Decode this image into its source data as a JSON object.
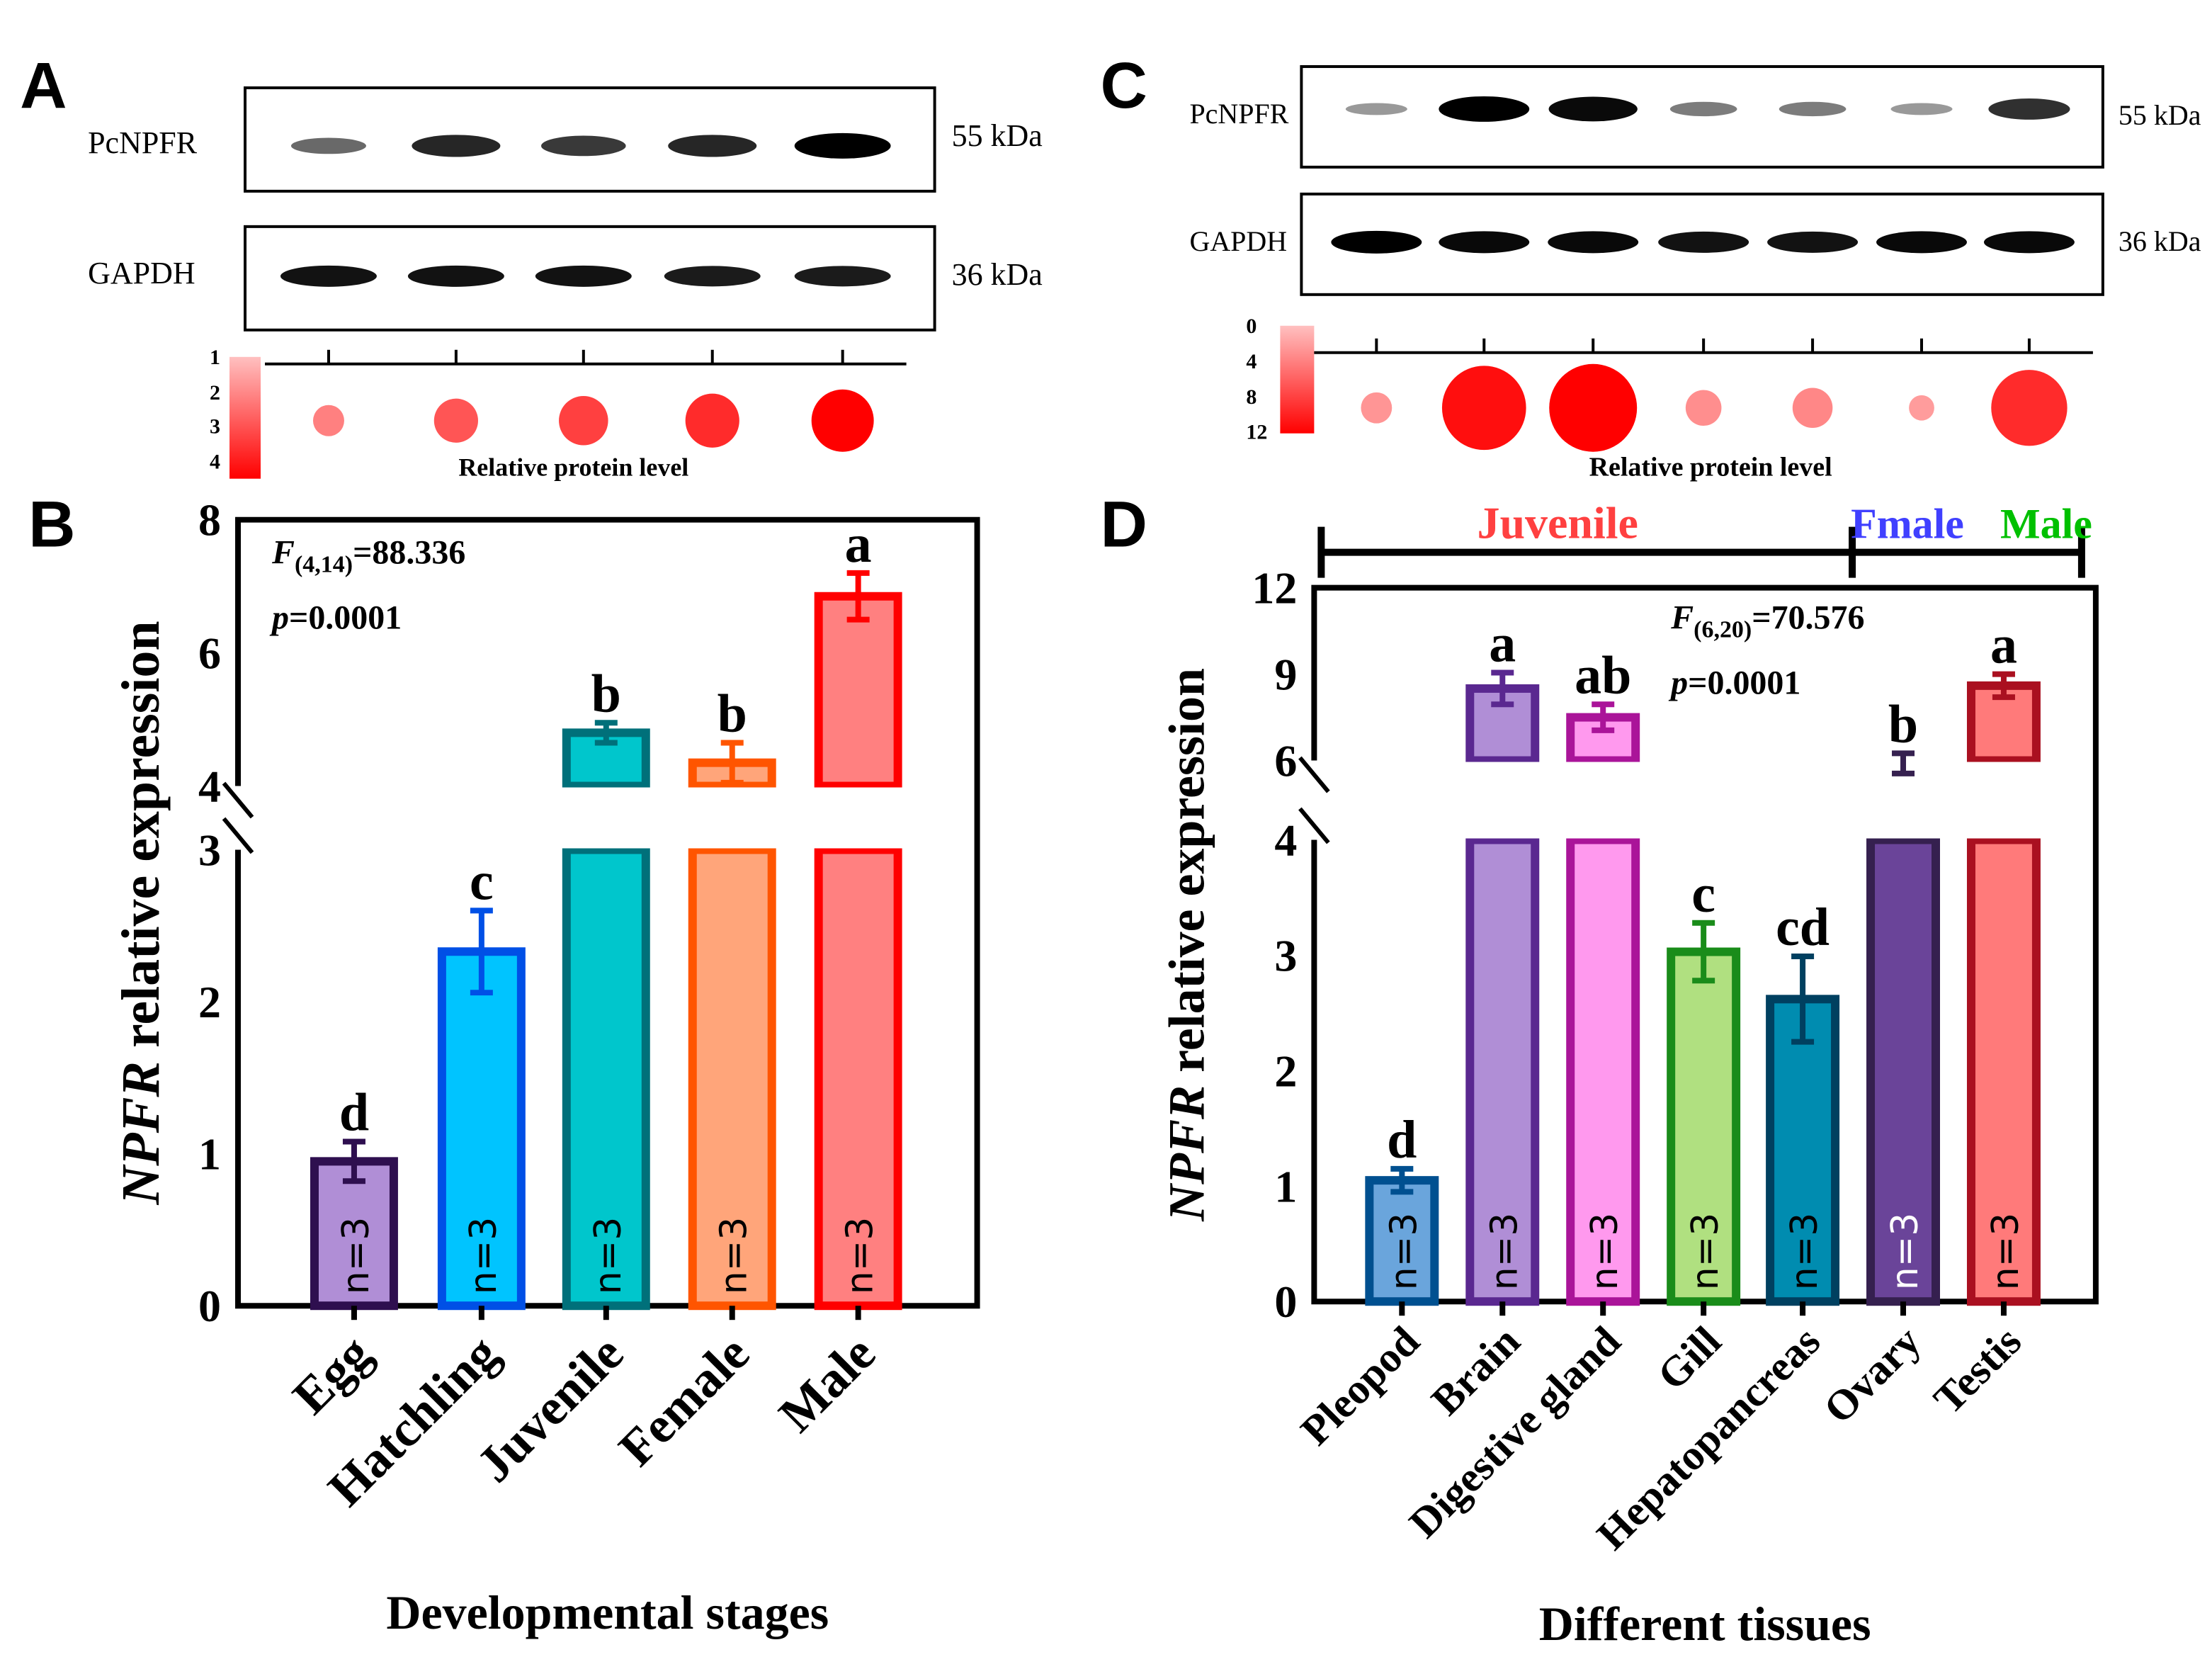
{
  "panels": {
    "a": "A",
    "b": "B",
    "c": "C",
    "d": "D"
  },
  "blot_a": {
    "target": "PcNPFR",
    "control": "GAPDH",
    "target_kda": "55 kDa",
    "control_kda": "36 kDa",
    "scale_ticks": [
      "1",
      "2",
      "3",
      "4"
    ],
    "scale_label": "Relative protein level",
    "target_intensity": [
      0.45,
      0.8,
      0.7,
      0.8,
      1.0
    ],
    "control_intensity": [
      0.9,
      0.9,
      0.9,
      0.85,
      0.85
    ],
    "relative_levels": [
      1,
      2,
      2.5,
      3,
      4
    ]
  },
  "blot_c": {
    "target": "PcNPFR",
    "control": "GAPDH",
    "target_kda": "55 kDa",
    "control_kda": "36 kDa",
    "scale_ticks": [
      "0",
      "4",
      "8",
      "12"
    ],
    "scale_label": "Relative protein level",
    "target_intensity": [
      0.2,
      1.0,
      0.95,
      0.35,
      0.35,
      0.2,
      0.75
    ],
    "control_intensity": [
      1,
      0.95,
      0.95,
      0.9,
      0.9,
      0.95,
      0.95
    ],
    "relative_levels": [
      1.5,
      11,
      12,
      2,
      2.5,
      1,
      9
    ]
  },
  "chart_data": [
    {
      "type": "bar",
      "id": "B",
      "categories": [
        "Egg",
        "Hatchling",
        "Juvenile",
        "Female",
        "Male"
      ],
      "values": [
        0.95,
        2.33,
        4.8,
        4.35,
        6.85
      ],
      "errors": [
        0.13,
        0.27,
        0.15,
        0.3,
        0.35
      ],
      "letters": [
        "d",
        "c",
        "b",
        "b",
        "a"
      ],
      "n_labels": [
        "n=3",
        "n=3",
        "n=3",
        "n=3",
        "n=3"
      ],
      "fill": [
        "#b08ed6",
        "#00c4ff",
        "#00c6cc",
        "#ffa57a",
        "#ff8080"
      ],
      "stroke": [
        "#2e0f4f",
        "#0050e6",
        "#00707a",
        "#ff5500",
        "#ff0000"
      ],
      "ylabel_italic": "NPFR",
      "ylabel_rest": " relative expression",
      "xlabel": "Developmental stages",
      "ylim": [
        0,
        8
      ],
      "axis_break": [
        3,
        4
      ],
      "yticks_lower": [
        "0",
        "1",
        "2",
        "3"
      ],
      "yticks_upper": [
        "4",
        "6",
        "8"
      ],
      "stat_f": "F",
      "stat_f_sub": "(4,14)",
      "stat_f_val": "=88.336",
      "stat_p": "p",
      "stat_p_val": "=0.0001"
    },
    {
      "type": "bar",
      "id": "D",
      "categories": [
        "Pleopod",
        "Brain",
        "Digestive gland",
        "Gill",
        "Hepatopancreas",
        "Ovary",
        "Testis"
      ],
      "values": [
        1.05,
        8.5,
        7.5,
        3.03,
        2.62,
        5.9,
        8.6
      ],
      "errors": [
        0.1,
        0.55,
        0.45,
        0.25,
        0.37,
        0.35,
        0.4
      ],
      "letters": [
        "d",
        "a",
        "ab",
        "c",
        "cd",
        "b",
        "a"
      ],
      "n_labels": [
        "n=3",
        "n=3",
        "n=3",
        "n=3",
        "n=3",
        "n=3",
        "n=3"
      ],
      "fill": [
        "#6aa5dc",
        "#b08ed6",
        "#ff99ee",
        "#b0e080",
        "#008cb0",
        "#6a4499",
        "#ff7a7a"
      ],
      "stroke": [
        "#005090",
        "#5a2890",
        "#aa1499",
        "#1a8c1a",
        "#004060",
        "#35204f",
        "#aa1020"
      ],
      "ylabel_italic": "NPFR",
      "ylabel_rest": " relative expression",
      "xlabel": "Different tissues",
      "ylim": [
        0,
        12
      ],
      "axis_break": [
        4,
        6
      ],
      "yticks_lower": [
        "0",
        "1",
        "2",
        "3",
        "4"
      ],
      "yticks_upper": [
        "6",
        "9",
        "12"
      ],
      "stat_f": "F",
      "stat_f_sub": "(6,20)",
      "stat_f_val": "=70.576",
      "stat_p": "p",
      "stat_p_val": "=0.0001",
      "groups": [
        {
          "label": "Juvenile",
          "color": "#ff4040"
        },
        {
          "label": "Fmale",
          "color": "#4040ff"
        },
        {
          "label": "Male",
          "color": "#00c000"
        }
      ]
    }
  ]
}
